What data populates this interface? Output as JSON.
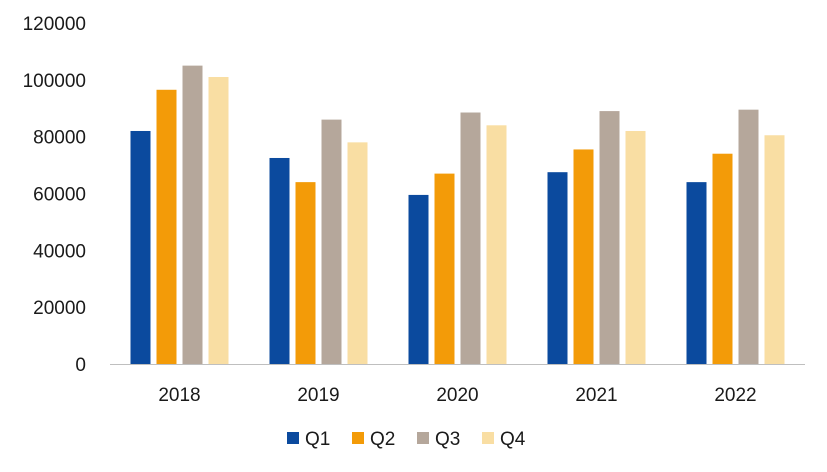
{
  "chart_data": {
    "type": "bar",
    "title": "",
    "xlabel": "",
    "ylabel": "",
    "categories": [
      "2018",
      "2019",
      "2020",
      "2021",
      "2022"
    ],
    "series": [
      {
        "name": "Q1",
        "color": "#0b4a9e",
        "values": [
          82000,
          72500,
          59500,
          67500,
          64000
        ]
      },
      {
        "name": "Q2",
        "color": "#f39b08",
        "values": [
          96500,
          64000,
          67000,
          75500,
          74000
        ]
      },
      {
        "name": "Q3",
        "color": "#b5a79b",
        "values": [
          105000,
          86000,
          88500,
          89000,
          89500
        ]
      },
      {
        "name": "Q4",
        "color": "#f9dea3",
        "values": [
          101000,
          78000,
          84000,
          82000,
          80500
        ]
      }
    ],
    "ylim": [
      0,
      120000
    ],
    "yticks": [
      "0",
      "20000",
      "40000",
      "60000",
      "80000",
      "100000",
      "120000"
    ],
    "grid": false,
    "legend_position": "bottom"
  }
}
